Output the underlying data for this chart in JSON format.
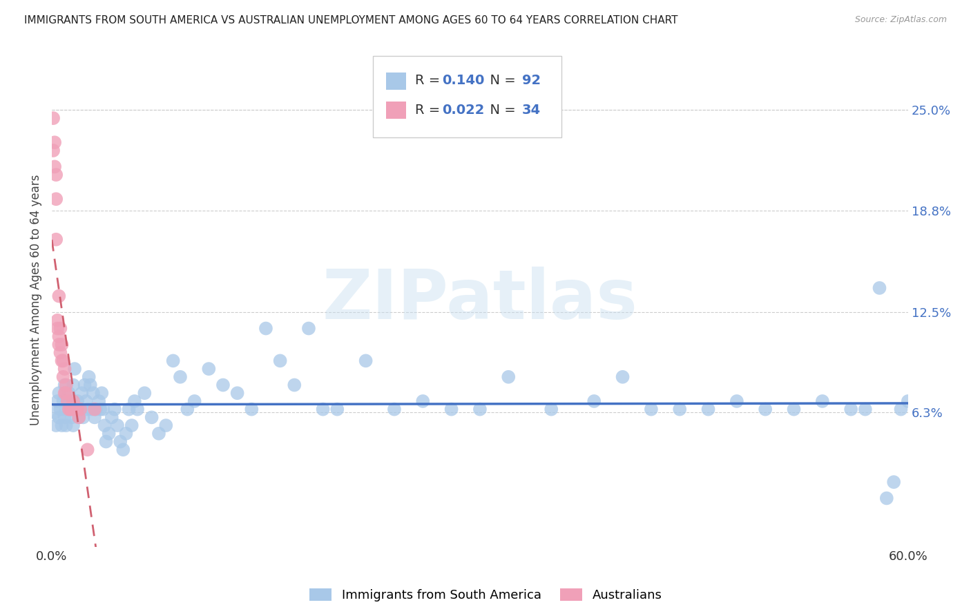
{
  "title": "IMMIGRANTS FROM SOUTH AMERICA VS AUSTRALIAN UNEMPLOYMENT AMONG AGES 60 TO 64 YEARS CORRELATION CHART",
  "source": "Source: ZipAtlas.com",
  "ylabel": "Unemployment Among Ages 60 to 64 years",
  "legend_labels": [
    "Immigrants from South America",
    "Australians"
  ],
  "r_blue": 0.14,
  "n_blue": 92,
  "r_pink": 0.022,
  "n_pink": 34,
  "xlim": [
    0.0,
    0.6
  ],
  "ylim": [
    -0.02,
    0.285
  ],
  "ytick_positions": [
    0.063,
    0.125,
    0.188,
    0.25
  ],
  "ytick_labels": [
    "6.3%",
    "12.5%",
    "18.8%",
    "25.0%"
  ],
  "color_blue": "#a8c8e8",
  "color_pink": "#f0a0b8",
  "line_blue": "#4472c4",
  "line_pink": "#d06070",
  "watermark": "ZIPatlas",
  "blue_x": [
    0.002,
    0.003,
    0.004,
    0.005,
    0.005,
    0.006,
    0.007,
    0.008,
    0.009,
    0.009,
    0.01,
    0.01,
    0.011,
    0.012,
    0.013,
    0.014,
    0.015,
    0.015,
    0.016,
    0.017,
    0.018,
    0.019,
    0.02,
    0.021,
    0.022,
    0.023,
    0.024,
    0.025,
    0.026,
    0.027,
    0.028,
    0.029,
    0.03,
    0.031,
    0.033,
    0.034,
    0.035,
    0.036,
    0.037,
    0.038,
    0.04,
    0.042,
    0.044,
    0.046,
    0.048,
    0.05,
    0.052,
    0.054,
    0.056,
    0.058,
    0.06,
    0.065,
    0.07,
    0.075,
    0.08,
    0.085,
    0.09,
    0.095,
    0.1,
    0.11,
    0.12,
    0.13,
    0.14,
    0.15,
    0.16,
    0.17,
    0.18,
    0.19,
    0.2,
    0.22,
    0.24,
    0.26,
    0.28,
    0.3,
    0.32,
    0.35,
    0.38,
    0.4,
    0.42,
    0.44,
    0.46,
    0.48,
    0.5,
    0.52,
    0.54,
    0.56,
    0.57,
    0.58,
    0.585,
    0.59,
    0.595,
    0.6
  ],
  "blue_y": [
    0.063,
    0.055,
    0.07,
    0.06,
    0.075,
    0.065,
    0.055,
    0.07,
    0.06,
    0.08,
    0.065,
    0.055,
    0.07,
    0.075,
    0.065,
    0.06,
    0.08,
    0.055,
    0.09,
    0.065,
    0.07,
    0.06,
    0.065,
    0.075,
    0.06,
    0.08,
    0.07,
    0.065,
    0.085,
    0.08,
    0.065,
    0.075,
    0.06,
    0.065,
    0.07,
    0.065,
    0.075,
    0.065,
    0.055,
    0.045,
    0.05,
    0.06,
    0.065,
    0.055,
    0.045,
    0.04,
    0.05,
    0.065,
    0.055,
    0.07,
    0.065,
    0.075,
    0.06,
    0.05,
    0.055,
    0.095,
    0.085,
    0.065,
    0.07,
    0.09,
    0.08,
    0.075,
    0.065,
    0.115,
    0.095,
    0.08,
    0.115,
    0.065,
    0.065,
    0.095,
    0.065,
    0.07,
    0.065,
    0.065,
    0.085,
    0.065,
    0.07,
    0.085,
    0.065,
    0.065,
    0.065,
    0.07,
    0.065,
    0.065,
    0.07,
    0.065,
    0.065,
    0.14,
    0.01,
    0.02,
    0.065,
    0.07
  ],
  "pink_x": [
    0.001,
    0.001,
    0.002,
    0.002,
    0.003,
    0.003,
    0.003,
    0.004,
    0.004,
    0.005,
    0.005,
    0.005,
    0.006,
    0.006,
    0.007,
    0.007,
    0.008,
    0.008,
    0.009,
    0.009,
    0.01,
    0.01,
    0.011,
    0.012,
    0.013,
    0.014,
    0.015,
    0.016,
    0.017,
    0.018,
    0.019,
    0.02,
    0.025,
    0.03
  ],
  "pink_y": [
    0.225,
    0.245,
    0.215,
    0.23,
    0.195,
    0.21,
    0.17,
    0.115,
    0.12,
    0.105,
    0.11,
    0.135,
    0.1,
    0.115,
    0.095,
    0.105,
    0.085,
    0.095,
    0.075,
    0.09,
    0.08,
    0.075,
    0.07,
    0.065,
    0.065,
    0.065,
    0.07,
    0.065,
    0.065,
    0.065,
    0.06,
    0.065,
    0.04,
    0.065
  ]
}
